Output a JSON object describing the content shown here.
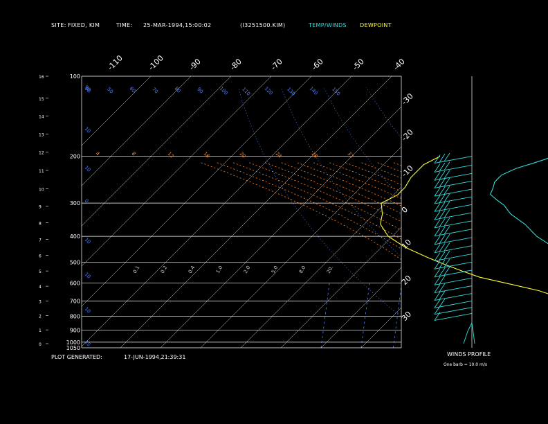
{
  "header": {
    "site_label": "SITE:",
    "site_value": "FIXED, KIM",
    "time_label": "TIME:",
    "time_value": "25-MAR-1994,15:00:02",
    "file": "(I3251500.KIM)",
    "legend_temp": "TEMP/WINDS",
    "legend_dew": "DEWPOINT"
  },
  "footer": {
    "generated_label": "PLOT GENERATED:",
    "generated_value": "17-JUN-1994,21:39:31"
  },
  "winds_panel": {
    "title": "WINDS PROFILE",
    "note": "One barb = 10.0 m/s"
  },
  "colors": {
    "temp": "#33dddd",
    "dew": "#ffff33",
    "isobar": "#ffffff",
    "isotherm": "#ffffff",
    "mixing_ratio": "#4d7fff",
    "dry_adiabat": "#4d7fff",
    "moist_adiabat": "#ff8c33",
    "wind": "#33dddd"
  },
  "chart_data": {
    "type": "line",
    "subtype": "skew-T log-P",
    "pressure_levels": [
      {
        "p": 100,
        "label": "100"
      },
      {
        "p": 200,
        "label": "200"
      },
      {
        "p": 300,
        "label": "300"
      },
      {
        "p": 400,
        "label": "400"
      },
      {
        "p": 500,
        "label": "500"
      },
      {
        "p": 600,
        "label": "600"
      },
      {
        "p": 700,
        "label": "700"
      },
      {
        "p": 800,
        "label": "800"
      },
      {
        "p": 900,
        "label": "900"
      },
      {
        "p": 1000,
        "label": "1000"
      },
      {
        "p": 1050,
        "label": "1050"
      }
    ],
    "height_ticks": [
      {
        "km": 16,
        "p": 100
      },
      {
        "km": 15,
        "p": 121
      },
      {
        "km": 14,
        "p": 141
      },
      {
        "km": 13,
        "p": 165
      },
      {
        "km": 12,
        "p": 193
      },
      {
        "km": 11,
        "p": 226
      },
      {
        "km": 10,
        "p": 265
      },
      {
        "km": 9,
        "p": 308
      },
      {
        "km": 8,
        "p": 356
      },
      {
        "km": 7,
        "p": 411
      },
      {
        "km": 6,
        "p": 472
      },
      {
        "km": 5,
        "p": 540
      },
      {
        "km": 4,
        "p": 616
      },
      {
        "km": 3,
        "p": 701
      },
      {
        "km": 2,
        "p": 795
      },
      {
        "km": 1,
        "p": 899
      },
      {
        "km": 0,
        "p": 1013
      }
    ],
    "isotherm_labels_top": [
      "-110",
      "-100",
      "-90",
      "-80",
      "-70",
      "-60",
      "-50",
      "-40"
    ],
    "isotherm_labels_right": [
      "-30",
      "-20",
      "-10",
      "0",
      "10",
      "20",
      "30"
    ],
    "dry_adiabat_labels": [
      "90",
      "50",
      "60",
      "70",
      "80",
      "90",
      "100",
      "110",
      "120",
      "130",
      "140",
      "150"
    ],
    "moist_adiabat_labels": [
      "4",
      "8",
      "12",
      "16",
      "20",
      "24",
      "28",
      "32"
    ],
    "mixing_ratio_labels": [
      "0.1",
      "0.2",
      "0.4",
      "1.0",
      "2.0",
      "5.0",
      "8.0",
      "20."
    ],
    "temperature_profile": [
      {
        "p": 200,
        "t": -50
      },
      {
        "p": 205,
        "t": -51
      },
      {
        "p": 212,
        "t": -53
      },
      {
        "p": 222,
        "t": -56
      },
      {
        "p": 235,
        "t": -58
      },
      {
        "p": 250,
        "t": -58
      },
      {
        "p": 262,
        "t": -57
      },
      {
        "p": 278,
        "t": -56
      },
      {
        "p": 292,
        "t": -53
      },
      {
        "p": 305,
        "t": -50
      },
      {
        "p": 330,
        "t": -46
      },
      {
        "p": 360,
        "t": -40
      },
      {
        "p": 400,
        "t": -34
      },
      {
        "p": 440,
        "t": -27
      },
      {
        "p": 470,
        "t": -22
      },
      {
        "p": 500,
        "t": -19
      },
      {
        "p": 530,
        "t": -14
      },
      {
        "p": 560,
        "t": -11
      },
      {
        "p": 600,
        "t": -6
      },
      {
        "p": 650,
        "t": -1
      },
      {
        "p": 700,
        "t": 4
      },
      {
        "p": 740,
        "t": 9
      },
      {
        "p": 760,
        "t": 10
      },
      {
        "p": 780,
        "t": 6
      },
      {
        "p": 800,
        "t": 3
      },
      {
        "p": 820,
        "t": 5
      }
    ],
    "dewpoint_profile": [
      {
        "p": 200,
        "t": -78
      },
      {
        "p": 215,
        "t": -80
      },
      {
        "p": 240,
        "t": -80
      },
      {
        "p": 262,
        "t": -79
      },
      {
        "p": 280,
        "t": -79
      },
      {
        "p": 300,
        "t": -81
      },
      {
        "p": 330,
        "t": -78
      },
      {
        "p": 360,
        "t": -76
      },
      {
        "p": 400,
        "t": -71
      },
      {
        "p": 440,
        "t": -64
      },
      {
        "p": 480,
        "t": -56
      },
      {
        "p": 510,
        "t": -50
      },
      {
        "p": 540,
        "t": -44
      },
      {
        "p": 570,
        "t": -38
      },
      {
        "p": 600,
        "t": -30
      },
      {
        "p": 640,
        "t": -20
      },
      {
        "p": 680,
        "t": -13
      },
      {
        "p": 720,
        "t": -7
      },
      {
        "p": 750,
        "t": -6
      },
      {
        "p": 780,
        "t": -6
      },
      {
        "p": 800,
        "t": -8
      },
      {
        "p": 810,
        "t": -10
      }
    ],
    "winds": [
      {
        "p": 200,
        "barbs": 3
      },
      {
        "p": 216,
        "barbs": 3
      },
      {
        "p": 232,
        "barbs": 3
      },
      {
        "p": 248,
        "barbs": 3
      },
      {
        "p": 266,
        "barbs": 3
      },
      {
        "p": 284,
        "barbs": 3
      },
      {
        "p": 304,
        "barbs": 3
      },
      {
        "p": 326,
        "barbs": 3
      },
      {
        "p": 350,
        "barbs": 3
      },
      {
        "p": 376,
        "barbs": 3
      },
      {
        "p": 404,
        "barbs": 3
      },
      {
        "p": 434,
        "barbs": 3
      },
      {
        "p": 466,
        "barbs": 3
      },
      {
        "p": 500,
        "barbs": 3
      },
      {
        "p": 536,
        "barbs": 3
      },
      {
        "p": 574,
        "barbs": 2
      },
      {
        "p": 614,
        "barbs": 2
      },
      {
        "p": 656,
        "barbs": 2
      },
      {
        "p": 700,
        "barbs": 2
      },
      {
        "p": 740,
        "barbs": 1
      },
      {
        "p": 780,
        "barbs": 1
      }
    ]
  }
}
